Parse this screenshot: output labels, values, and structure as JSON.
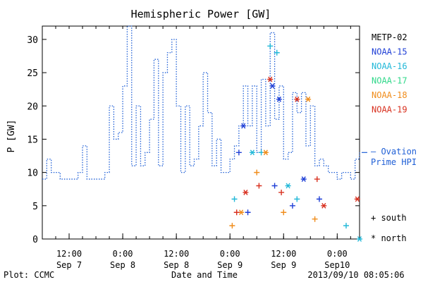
{
  "chart_data": {
    "type": "scatter",
    "title": "Hemispheric Power [GW]",
    "ylabel": "P [GW]",
    "xlabel": "Date and Time",
    "ylim": [
      0,
      32
    ],
    "xlim": [
      "2013-09-07 06:00",
      "2013-09-10 05:00"
    ],
    "grid": false,
    "legend_position": "right",
    "y_ticks": [
      0,
      5,
      10,
      15,
      20,
      25,
      30
    ],
    "x_ticks": [
      {
        "x": "2013-09-07 12:00",
        "time": "12:00",
        "date": "Sep 7"
      },
      {
        "x": "2013-09-08 00:00",
        "time": "0:00",
        "date": "Sep 8"
      },
      {
        "x": "2013-09-08 12:00",
        "time": "12:00",
        "date": "Sep 8"
      },
      {
        "x": "2013-09-09 00:00",
        "time": "0:00",
        "date": "Sep 9"
      },
      {
        "x": "2013-09-09 12:00",
        "time": "12:00",
        "date": "Sep 9"
      },
      {
        "x": "2013-09-10 00:00",
        "time": "0:00",
        "date": "Sep10"
      }
    ],
    "ovation_series": {
      "name": "Ovation Prime HPI",
      "color": "#1f5fd6",
      "last_value": 13,
      "points": [
        [
          "2013-09-07 06:00",
          9
        ],
        [
          "2013-09-07 07:00",
          12
        ],
        [
          "2013-09-07 08:00",
          10
        ],
        [
          "2013-09-07 10:00",
          9
        ],
        [
          "2013-09-07 14:00",
          10
        ],
        [
          "2013-09-07 15:00",
          14
        ],
        [
          "2013-09-07 16:00",
          9
        ],
        [
          "2013-09-07 20:00",
          10
        ],
        [
          "2013-09-07 21:00",
          20
        ],
        [
          "2013-09-07 22:00",
          15
        ],
        [
          "2013-09-07 23:00",
          16
        ],
        [
          "2013-09-08 00:00",
          23
        ],
        [
          "2013-09-08 01:00",
          32
        ],
        [
          "2013-09-08 02:00",
          11
        ],
        [
          "2013-09-08 03:00",
          20
        ],
        [
          "2013-09-08 04:00",
          11
        ],
        [
          "2013-09-08 05:00",
          13
        ],
        [
          "2013-09-08 06:00",
          18
        ],
        [
          "2013-09-08 07:00",
          27
        ],
        [
          "2013-09-08 08:00",
          11
        ],
        [
          "2013-09-08 09:00",
          25
        ],
        [
          "2013-09-08 10:00",
          28
        ],
        [
          "2013-09-08 11:00",
          30
        ],
        [
          "2013-09-08 12:00",
          20
        ],
        [
          "2013-09-08 13:00",
          10
        ],
        [
          "2013-09-08 14:00",
          20
        ],
        [
          "2013-09-08 15:00",
          11
        ],
        [
          "2013-09-08 16:00",
          12
        ],
        [
          "2013-09-08 17:00",
          17
        ],
        [
          "2013-09-08 18:00",
          25
        ],
        [
          "2013-09-08 19:00",
          19
        ],
        [
          "2013-09-08 20:00",
          11
        ],
        [
          "2013-09-08 21:00",
          15
        ],
        [
          "2013-09-08 22:00",
          10
        ],
        [
          "2013-09-08 23:00",
          10
        ],
        [
          "2013-09-09 00:00",
          12
        ],
        [
          "2013-09-09 01:00",
          14
        ],
        [
          "2013-09-09 02:00",
          17
        ],
        [
          "2013-09-09 03:00",
          23
        ],
        [
          "2013-09-09 04:00",
          17
        ],
        [
          "2013-09-09 05:00",
          23
        ],
        [
          "2013-09-09 06:00",
          13
        ],
        [
          "2013-09-09 07:00",
          24
        ],
        [
          "2013-09-09 08:00",
          17
        ],
        [
          "2013-09-09 09:00",
          31
        ],
        [
          "2013-09-09 10:00",
          18
        ],
        [
          "2013-09-09 11:00",
          23
        ],
        [
          "2013-09-09 12:00",
          12
        ],
        [
          "2013-09-09 13:00",
          13
        ],
        [
          "2013-09-09 14:00",
          22
        ],
        [
          "2013-09-09 15:00",
          19
        ],
        [
          "2013-09-09 16:00",
          22
        ],
        [
          "2013-09-09 17:00",
          14
        ],
        [
          "2013-09-09 18:00",
          20
        ],
        [
          "2013-09-09 19:00",
          11
        ],
        [
          "2013-09-09 20:00",
          12
        ],
        [
          "2013-09-09 21:00",
          11
        ],
        [
          "2013-09-09 22:00",
          10
        ],
        [
          "2013-09-10 00:00",
          9
        ],
        [
          "2013-09-10 01:00",
          10
        ],
        [
          "2013-09-10 03:00",
          9
        ],
        [
          "2013-09-10 04:00",
          12
        ],
        [
          "2013-09-10 05:00",
          13
        ]
      ]
    },
    "satellites": [
      {
        "name": "METP-02",
        "color": "#000000",
        "south": [],
        "north": []
      },
      {
        "name": "NOAA-15",
        "color": "#1f3fd6",
        "south": [
          [
            "2013-09-09 02:00",
            13
          ],
          [
            "2013-09-09 04:00",
            4
          ],
          [
            "2013-09-09 10:00",
            8
          ],
          [
            "2013-09-09 14:00",
            5
          ],
          [
            "2013-09-09 20:00",
            6
          ]
        ],
        "north": [
          [
            "2013-09-09 03:00",
            17
          ],
          [
            "2013-09-09 09:30",
            23
          ],
          [
            "2013-09-09 11:00",
            21
          ],
          [
            "2013-09-09 16:30",
            9
          ]
        ]
      },
      {
        "name": "NOAA-16",
        "color": "#22b8d8",
        "south": [
          [
            "2013-09-09 01:00",
            6
          ],
          [
            "2013-09-09 07:00",
            13
          ],
          [
            "2013-09-09 09:00",
            29
          ],
          [
            "2013-09-09 10:30",
            28
          ],
          [
            "2013-09-09 15:00",
            6
          ],
          [
            "2013-09-10 02:00",
            2
          ]
        ],
        "north": [
          [
            "2013-09-09 05:00",
            13
          ],
          [
            "2013-09-09 13:00",
            8
          ],
          [
            "2013-09-10 05:00",
            0
          ]
        ]
      },
      {
        "name": "NOAA-17",
        "color": "#30d88a",
        "south": [],
        "north": []
      },
      {
        "name": "NOAA-18",
        "color": "#f08c1a",
        "south": [
          [
            "2013-09-09 00:30",
            2
          ],
          [
            "2013-09-09 06:00",
            10
          ],
          [
            "2013-09-09 12:00",
            4
          ],
          [
            "2013-09-09 19:00",
            3
          ]
        ],
        "north": [
          [
            "2013-09-09 02:30",
            4
          ],
          [
            "2013-09-09 08:00",
            13
          ],
          [
            "2013-09-09 17:30",
            21
          ]
        ]
      },
      {
        "name": "NOAA-19",
        "color": "#d8301f",
        "south": [
          [
            "2013-09-09 01:30",
            4
          ],
          [
            "2013-09-09 06:30",
            8
          ],
          [
            "2013-09-09 11:30",
            7
          ],
          [
            "2013-09-09 19:30",
            9
          ]
        ],
        "north": [
          [
            "2013-09-09 03:30",
            7
          ],
          [
            "2013-09-09 09:00",
            24
          ],
          [
            "2013-09-09 15:00",
            21
          ],
          [
            "2013-09-09 21:00",
            5
          ],
          [
            "2013-09-10 04:30",
            6
          ]
        ]
      }
    ],
    "marker_legend": {
      "south": "+ south",
      "north": "* north"
    }
  },
  "labels": {
    "ovation_line1": "— Ovation",
    "ovation_line2": "Prime HPI",
    "footer_left": "Plot: CCMC",
    "footer_right": "2013/09/10 08:05:06"
  }
}
